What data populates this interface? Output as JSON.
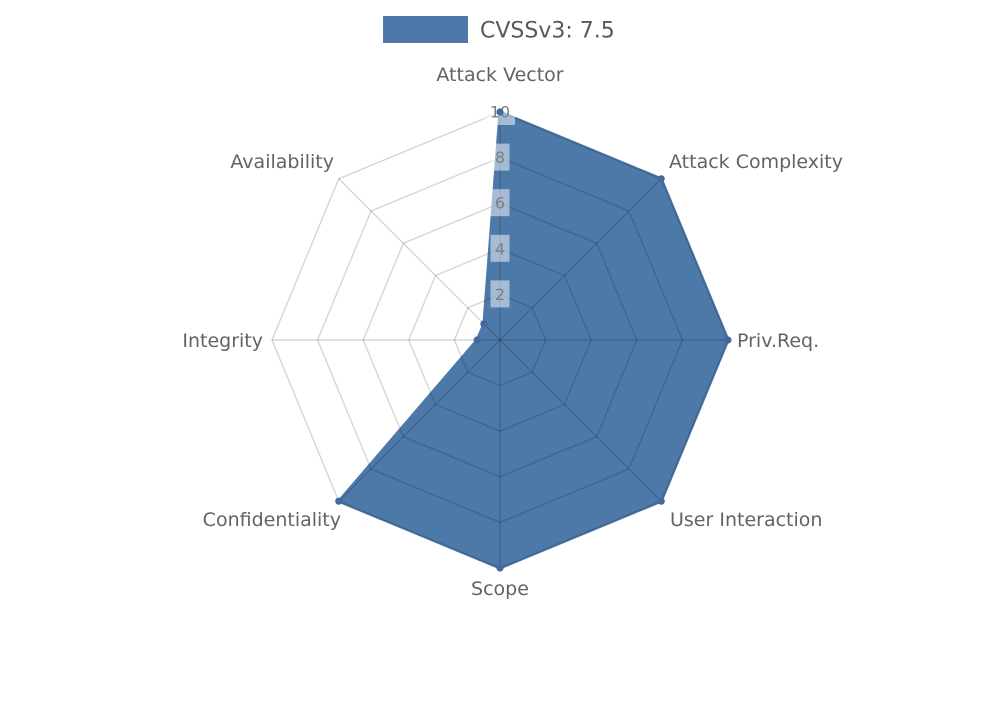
{
  "page": {
    "background": "#ffffff"
  },
  "legend": {
    "label": "CVSSv3: 7.5",
    "swatch_color": "#4d78a9",
    "text_color": "#58595b"
  },
  "chart_data": {
    "type": "radar",
    "categories": [
      "Attack Vector",
      "Attack Complexity",
      "Priv.Req.",
      "User Interaction",
      "Scope",
      "Confidentiality",
      "Integrity",
      "Availability"
    ],
    "series": [
      {
        "name": "CVSSv3: 7.5",
        "values": [
          10,
          10,
          10,
          10,
          10,
          10,
          1,
          1
        ]
      }
    ],
    "ticks": [
      "2",
      "4",
      "6",
      "8",
      "10"
    ],
    "tick_values": [
      2,
      4,
      6,
      8,
      10
    ],
    "axis_range": [
      0,
      10
    ],
    "grid": true,
    "legend_position": "top",
    "colors": {
      "fill": "#4d79a9",
      "stroke": "#4d79a9",
      "marker": "#44689a",
      "grid_line": "rgba(0,0,0,0.16)",
      "axis_label": "#636363",
      "tick_label": "#7a7f84",
      "tick_box": "rgba(255,255,255,0.5)"
    }
  }
}
